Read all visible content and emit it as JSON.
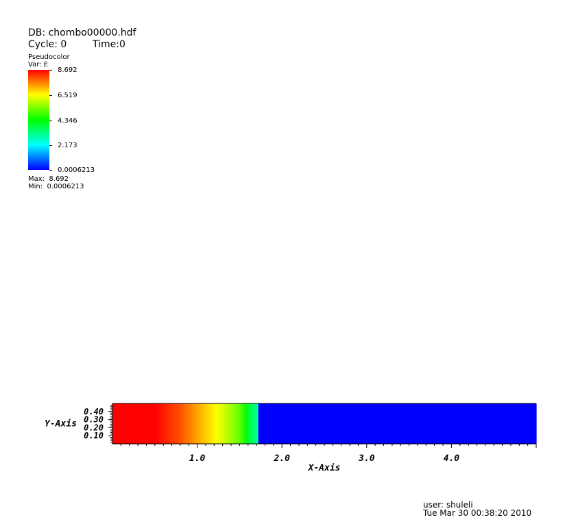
{
  "header": {
    "db_line": "DB: chombo00000.hdf",
    "cycle_line": "Cycle: 0",
    "time_line": "Time:0"
  },
  "legend": {
    "plot_type": "Pseudocolor",
    "var_label": "Var: E",
    "tick_labels": [
      "8.692",
      "6.519",
      "4.346",
      "2.173",
      "0.0006213"
    ],
    "max_line": "Max:  8.692",
    "min_line": "Min:  0.0006213",
    "colormap": [
      "#ff0000",
      "#ffff00",
      "#00ff00",
      "#00ffff",
      "#0000ff"
    ]
  },
  "footer": {
    "user_line": "user: shuleli",
    "date_line": "Tue Mar 30 00:38:20 2010"
  },
  "chart_data": {
    "type": "heatmap",
    "variable": "E",
    "xlabel": "X-Axis",
    "ylabel": "Y-Axis",
    "xlim": [
      0,
      5.0
    ],
    "ylim": [
      0,
      0.5
    ],
    "x_ticks": [
      1.0,
      2.0,
      3.0,
      4.0
    ],
    "x_tick_labels": [
      "1.0",
      "2.0",
      "3.0",
      "4.0"
    ],
    "y_ticks": [
      0.1,
      0.2,
      0.3,
      0.4
    ],
    "y_tick_labels": [
      "0.10",
      "0.20",
      "0.30",
      "0.40"
    ],
    "value_range": [
      0.0006213,
      8.692
    ],
    "profile_along_x": {
      "x": [
        0.0,
        0.5,
        0.8,
        1.0,
        1.2,
        1.3,
        1.5,
        1.65,
        1.72,
        1.73,
        5.0
      ],
      "value": [
        8.69,
        8.69,
        8.0,
        7.3,
        6.6,
        6.2,
        5.2,
        3.5,
        3.0,
        0.0006,
        0.0006
      ]
    }
  }
}
